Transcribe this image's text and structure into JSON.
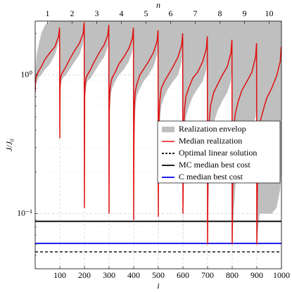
{
  "chart_data": {
    "type": "line",
    "xlabel": "i",
    "ylabel": "J/J₀",
    "x2label": "n",
    "xlim": [
      0,
      1000
    ],
    "ylim": [
      0.04,
      2.45
    ],
    "log_y": true,
    "grid": true,
    "xticks": [
      100,
      200,
      300,
      400,
      500,
      600,
      700,
      800,
      900,
      1000
    ],
    "yticks": [
      {
        "value": 0.1,
        "label": "10⁻¹"
      },
      {
        "value": 1,
        "label": "10⁰"
      }
    ],
    "yminorticks": [
      0.05,
      0.06,
      0.07,
      0.08,
      0.09,
      0.2,
      0.3,
      0.4,
      0.5,
      0.6,
      0.7,
      0.8,
      0.9,
      2
    ],
    "x2ticks": [
      {
        "value": 50,
        "label": "1"
      },
      {
        "value": 150,
        "label": "2"
      },
      {
        "value": 250,
        "label": "3"
      },
      {
        "value": 350,
        "label": "4"
      },
      {
        "value": 450,
        "label": "5"
      },
      {
        "value": 550,
        "label": "6"
      },
      {
        "value": 650,
        "label": "7"
      },
      {
        "value": 750,
        "label": "8"
      },
      {
        "value": 850,
        "label": "9"
      },
      {
        "value": 950,
        "label": "10"
      }
    ],
    "x": [
      0,
      1,
      3,
      6,
      12,
      25,
      40,
      60,
      80,
      95,
      99,
      100,
      101,
      103,
      106,
      112,
      125,
      140,
      160,
      180,
      195,
      199,
      200,
      201,
      203,
      206,
      212,
      225,
      240,
      260,
      280,
      295,
      299,
      300,
      301,
      303,
      306,
      312,
      325,
      340,
      360,
      380,
      395,
      399,
      400,
      401,
      403,
      406,
      412,
      425,
      440,
      460,
      480,
      495,
      499,
      500,
      501,
      503,
      506,
      512,
      525,
      540,
      560,
      580,
      595,
      599,
      600,
      601,
      603,
      606,
      612,
      625,
      640,
      660,
      680,
      695,
      699,
      700,
      701,
      703,
      706,
      712,
      725,
      740,
      760,
      780,
      795,
      799,
      800,
      801,
      803,
      806,
      812,
      825,
      840,
      860,
      880,
      895,
      899,
      900,
      901,
      903,
      906,
      912,
      925,
      940,
      960,
      980,
      995,
      999
    ],
    "series": [
      {
        "name": "Realization envelop",
        "color": "#bfbfbf",
        "lower": [
          0.7,
          0.75,
          0.85,
          0.9,
          0.95,
          1.0,
          1.1,
          1.2,
          1.4,
          1.7,
          2.0,
          0.3,
          0.6,
          0.8,
          0.9,
          0.95,
          1.0,
          1.1,
          1.25,
          1.4,
          1.7,
          2.1,
          0.1,
          0.4,
          0.7,
          0.8,
          0.9,
          0.95,
          1.05,
          1.2,
          1.35,
          1.6,
          2.0,
          0.09,
          0.3,
          0.55,
          0.7,
          0.8,
          0.9,
          1.0,
          1.1,
          1.25,
          1.5,
          1.9,
          0.08,
          0.15,
          0.4,
          0.55,
          0.7,
          0.8,
          0.9,
          1.0,
          1.15,
          1.4,
          1.8,
          0.06,
          0.1,
          0.3,
          0.45,
          0.6,
          0.7,
          0.8,
          0.9,
          1.0,
          1.25,
          1.6,
          0.055,
          0.09,
          0.2,
          0.35,
          0.5,
          0.6,
          0.7,
          0.8,
          0.9,
          1.1,
          1.4,
          0.055,
          0.07,
          0.12,
          0.2,
          0.35,
          0.45,
          0.55,
          0.65,
          0.75,
          0.9,
          1.2,
          0.055,
          0.06,
          0.08,
          0.1,
          0.15,
          0.25,
          0.3,
          0.35,
          0.4,
          0.5,
          0.6,
          0.055,
          0.06,
          0.07,
          0.08,
          0.1,
          0.1,
          0.1,
          0.1,
          0.11,
          0.15,
          0.2
        ],
        "upper": [
          0.8,
          1.0,
          1.2,
          1.4,
          1.6,
          2.0,
          2.3,
          2.45,
          2.45,
          2.45,
          2.45,
          2.45,
          2.45,
          2.45,
          2.45,
          2.45,
          2.45,
          2.45,
          2.45,
          2.45,
          2.45,
          2.45,
          2.45,
          2.45,
          2.45,
          2.45,
          2.45,
          2.45,
          2.45,
          2.45,
          2.45,
          2.45,
          2.45,
          2.45,
          2.45,
          2.45,
          2.45,
          2.45,
          2.45,
          2.45,
          2.45,
          2.45,
          2.45,
          2.45,
          2.45,
          2.45,
          2.45,
          2.45,
          2.45,
          2.45,
          2.45,
          2.45,
          2.45,
          2.45,
          2.45,
          2.45,
          2.45,
          2.45,
          2.45,
          2.45,
          2.45,
          2.45,
          2.45,
          2.45,
          2.45,
          2.45,
          2.45,
          2.45,
          2.45,
          2.45,
          2.45,
          2.45,
          2.45,
          2.45,
          2.45,
          2.45,
          2.45,
          2.45,
          2.45,
          2.45,
          2.45,
          2.45,
          2.45,
          2.45,
          2.45,
          2.45,
          2.45,
          2.45,
          2.45,
          2.45,
          2.45,
          2.45,
          2.45,
          2.45,
          2.45,
          2.45,
          2.45,
          2.45,
          2.45,
          2.45,
          2.45,
          2.45,
          2.45,
          2.45,
          2.45,
          2.45,
          2.45,
          2.45,
          2.45,
          2.45
        ]
      },
      {
        "name": "Median realization",
        "color": "#e01010",
        "values": [
          0.75,
          0.85,
          0.95,
          1.0,
          1.05,
          1.15,
          1.3,
          1.45,
          1.6,
          1.9,
          2.2,
          0.35,
          0.8,
          0.95,
          1.0,
          1.05,
          1.15,
          1.3,
          1.5,
          1.7,
          2.0,
          2.4,
          0.11,
          0.7,
          0.85,
          0.95,
          1.0,
          1.1,
          1.25,
          1.45,
          1.65,
          1.95,
          2.3,
          0.1,
          0.55,
          0.75,
          0.85,
          0.95,
          1.05,
          1.2,
          1.35,
          1.55,
          1.85,
          2.2,
          0.09,
          0.3,
          0.6,
          0.75,
          0.85,
          1.0,
          1.1,
          1.25,
          1.45,
          1.75,
          2.1,
          0.095,
          0.2,
          0.5,
          0.65,
          0.8,
          0.9,
          1.0,
          1.15,
          1.35,
          1.65,
          2.0,
          0.1,
          0.15,
          0.4,
          0.55,
          0.7,
          0.82,
          0.95,
          1.05,
          1.25,
          1.55,
          1.9,
          0.06,
          0.12,
          0.3,
          0.45,
          0.6,
          0.75,
          0.85,
          1.0,
          1.15,
          1.45,
          1.8,
          0.06,
          0.1,
          0.25,
          0.4,
          0.52,
          0.65,
          0.78,
          0.9,
          1.05,
          1.35,
          1.7,
          0.06,
          0.1,
          0.2,
          0.3,
          0.45,
          0.55,
          0.68,
          0.8,
          0.98,
          1.25,
          1.6
        ]
      }
    ],
    "reference_lines": [
      {
        "name": "Optimal linear solution",
        "color": "#000000",
        "value": 0.053,
        "dashed": true
      },
      {
        "name": "MC median best cost",
        "color": "#000000",
        "value": 0.088,
        "dashed": false
      },
      {
        "name": "C median best cost",
        "color": "#0000ee",
        "value": 0.061,
        "dashed": false
      }
    ]
  }
}
